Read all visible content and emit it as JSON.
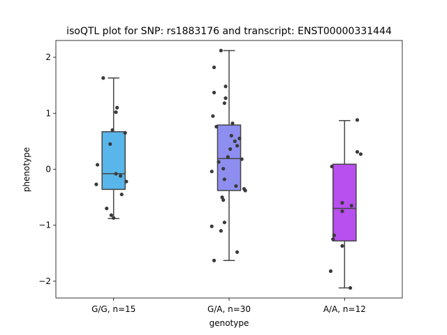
{
  "chart_data": {
    "type": "box",
    "title": "isoQTL plot for SNP: rs1883176 and transcript: ENST00000331444",
    "xlabel": "genotype",
    "ylabel": "phenotype",
    "ylim": [
      -2.3,
      2.3
    ],
    "yticks": [
      2,
      1,
      0,
      -1,
      -2
    ],
    "ytick_labels": [
      "2",
      "1",
      "0",
      "−1",
      "−2"
    ],
    "grid": false,
    "categories": [
      "G/G, n=15",
      "G/A, n=30",
      "A/A, n=12"
    ],
    "boxes": [
      {
        "category": "G/G, n=15",
        "color": "#58b6ea",
        "whisker_low": -0.88,
        "q1": -0.36,
        "median": -0.08,
        "q3": 0.67,
        "whisker_high": 1.63,
        "points": [
          1.63,
          1.1,
          1.02,
          0.7,
          0.65,
          0.45,
          0.08,
          -0.08,
          -0.12,
          -0.22,
          -0.27,
          -0.45,
          -0.7,
          -0.82,
          -0.87
        ],
        "jitter": [
          -0.09,
          0.03,
          0.02,
          -0.01,
          0.1,
          -0.03,
          -0.14,
          0.02,
          0.06,
          0.11,
          -0.15,
          0.07,
          -0.06,
          -0.02,
          0.0
        ]
      },
      {
        "category": "G/A, n=30",
        "color": "#8e8ef0",
        "whisker_low": -1.63,
        "q1": -0.38,
        "median": 0.19,
        "q3": 0.79,
        "whisker_high": 2.12,
        "points": [
          2.12,
          1.82,
          1.48,
          1.37,
          1.27,
          1.18,
          0.95,
          0.82,
          0.76,
          0.6,
          0.55,
          0.5,
          0.42,
          0.36,
          0.22,
          0.18,
          0.13,
          0.01,
          -0.04,
          -0.18,
          -0.3,
          -0.35,
          -0.38,
          -0.5,
          -0.55,
          -0.95,
          -1.02,
          -1.1,
          -1.48,
          -1.63
        ],
        "jitter": [
          -0.07,
          -0.13,
          -0.03,
          -0.13,
          -0.03,
          -0.04,
          -0.14,
          0.03,
          -0.11,
          0.02,
          0.09,
          0.05,
          0.07,
          0.01,
          -0.01,
          0.11,
          -0.09,
          -0.05,
          -0.15,
          -0.04,
          0.06,
          0.13,
          0.14,
          -0.06,
          -0.05,
          -0.04,
          -0.15,
          -0.07,
          0.07,
          -0.13
        ]
      },
      {
        "category": "A/A, n=12",
        "color": "#b84fef",
        "whisker_low": -2.12,
        "q1": -1.28,
        "median": -0.7,
        "q3": 0.09,
        "whisker_high": 0.87,
        "points": [
          0.88,
          0.31,
          0.27,
          0.05,
          -0.6,
          -0.65,
          -0.75,
          -1.18,
          -1.25,
          -1.37,
          -1.82,
          -2.12
        ],
        "jitter": [
          0.11,
          0.11,
          0.14,
          -0.11,
          -0.02,
          0.06,
          -0.02,
          -0.09,
          -0.1,
          -0.02,
          -0.12,
          0.05
        ]
      }
    ]
  }
}
